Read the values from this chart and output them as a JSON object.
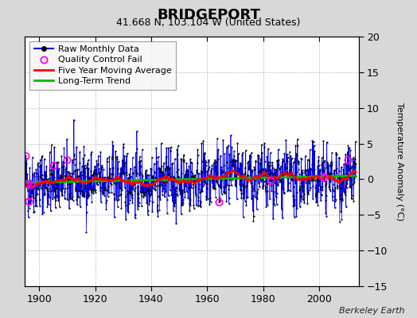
{
  "title": "BRIDGEPORT",
  "subtitle": "41.668 N, 103.104 W (United States)",
  "ylabel": "Temperature Anomaly (°C)",
  "watermark": "Berkeley Earth",
  "xlim": [
    1895,
    2014
  ],
  "ylim": [
    -15,
    20
  ],
  "yticks": [
    -15,
    -10,
    -5,
    0,
    5,
    10,
    15,
    20
  ],
  "xticks": [
    1900,
    1920,
    1940,
    1960,
    1980,
    2000
  ],
  "start_year": 1895,
  "end_year": 2013,
  "seed": 42,
  "raw_color": "#0000ff",
  "ma_color": "#ff0000",
  "trend_color": "#00bb00",
  "qc_color": "#ff00ff",
  "background_color": "#d8d8d8",
  "plot_bg_color": "#ffffff",
  "grid_color": "#bbbbbb",
  "title_fontsize": 13,
  "subtitle_fontsize": 9,
  "ylabel_fontsize": 8,
  "tick_fontsize": 9,
  "legend_fontsize": 8
}
